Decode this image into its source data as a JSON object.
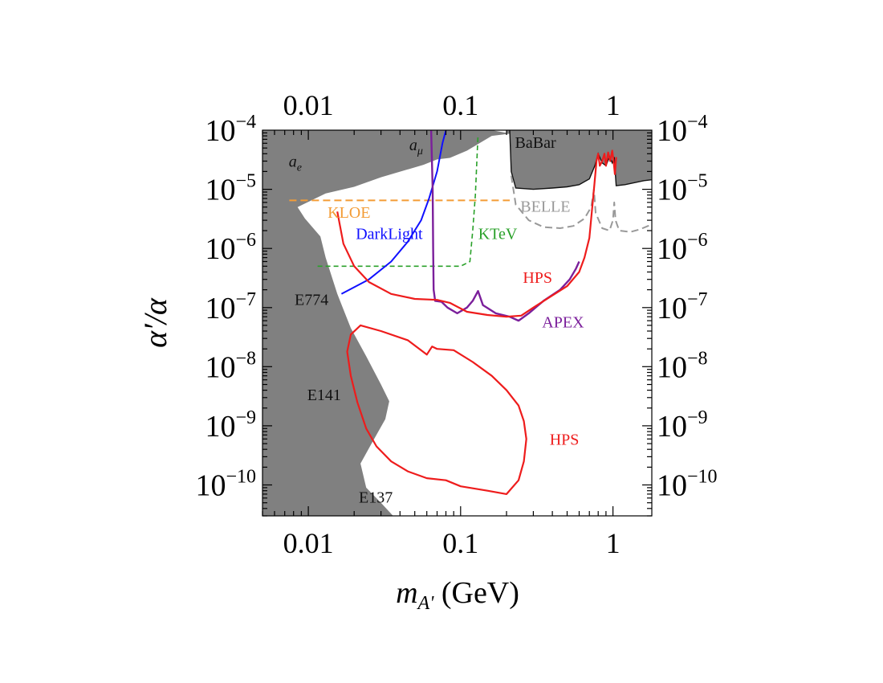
{
  "chart_data": {
    "type": "line",
    "xscale": "log",
    "yscale": "log",
    "xlim": [
      0.005,
      1.8
    ],
    "ylim": [
      3e-11,
      0.0001
    ],
    "xlabel_main": "m",
    "xlabel_sub": "A'",
    "xlabel_unit": " (GeV)",
    "ylabel": "α′/α",
    "x_ticks": [
      {
        "v": 0.01,
        "label": "0.01"
      },
      {
        "v": 0.1,
        "label": "0.1"
      },
      {
        "v": 1,
        "label": "1"
      }
    ],
    "y_ticks": [
      {
        "v": 0.0001,
        "base": "10",
        "exp": "−4"
      },
      {
        "v": 1e-05,
        "base": "10",
        "exp": "−5"
      },
      {
        "v": 1e-06,
        "base": "10",
        "exp": "−6"
      },
      {
        "v": 1e-07,
        "base": "10",
        "exp": "−7"
      },
      {
        "v": 1e-08,
        "base": "10",
        "exp": "−8"
      },
      {
        "v": 1e-09,
        "base": "10",
        "exp": "−9"
      },
      {
        "v": 1e-10,
        "base": "10",
        "exp": "−10"
      }
    ],
    "excluded_regions": [
      {
        "name": "ae-amu-E774-E141-E137",
        "color": "#808080",
        "points": [
          [
            0.005,
            3e-11
          ],
          [
            0.005,
            0.0001
          ],
          [
            0.07,
            0.0001
          ],
          [
            0.16,
            0.0001
          ],
          [
            0.2,
            9e-05
          ],
          [
            0.2,
            0.0001
          ],
          [
            0.33,
            0.0001
          ],
          [
            0.16,
            8e-05
          ],
          [
            0.11,
            4.5e-05
          ],
          [
            0.085,
            3.4e-05
          ],
          [
            0.07,
            3.2e-05
          ],
          [
            0.057,
            2.6e-05
          ],
          [
            0.043,
            2.1e-05
          ],
          [
            0.03,
            1.6e-05
          ],
          [
            0.02,
            1.1e-05
          ],
          [
            0.013,
            8.5e-06
          ],
          [
            0.0085,
            5e-06
          ],
          [
            0.0095,
            3.2e-06
          ],
          [
            0.012,
            1.6e-06
          ],
          [
            0.013,
            7e-07
          ],
          [
            0.0155,
            1.7e-07
          ],
          [
            0.019,
            4.5e-08
          ],
          [
            0.024,
            1.5e-08
          ],
          [
            0.03,
            5e-09
          ],
          [
            0.034,
            2.6e-09
          ],
          [
            0.032,
            1.3e-09
          ],
          [
            0.026,
            5e-10
          ],
          [
            0.022,
            2.3e-10
          ],
          [
            0.024,
            9e-11
          ],
          [
            0.03,
            5e-11
          ],
          [
            0.036,
            3e-11
          ]
        ]
      },
      {
        "name": "BaBar",
        "color": "#808080",
        "points": [
          [
            0.21,
            0.0001
          ],
          [
            1.8,
            0.0001
          ],
          [
            1.8,
            1.45e-05
          ],
          [
            1.6,
            1.4e-05
          ],
          [
            1.2,
            1.2e-05
          ],
          [
            1.05,
            1.15e-05
          ],
          [
            1.02,
            3.5e-05
          ],
          [
            0.99,
            2.8e-05
          ],
          [
            0.95,
            3.6e-05
          ],
          [
            0.9,
            2.5e-05
          ],
          [
            0.85,
            2.8e-05
          ],
          [
            0.8,
            4e-05
          ],
          [
            0.76,
            2.5e-05
          ],
          [
            0.7,
            1.5e-05
          ],
          [
            0.6,
            1.2e-05
          ],
          [
            0.5,
            1.1e-05
          ],
          [
            0.4,
            1.05e-05
          ],
          [
            0.3,
            1e-05
          ],
          [
            0.23,
            1.05e-05
          ],
          [
            0.215,
            2e-05
          ],
          [
            0.21,
            0.0001
          ]
        ]
      }
    ],
    "series": [
      {
        "name": "KLOE",
        "color": "#f39c36",
        "dash": "9,5",
        "width": 2,
        "points": [
          [
            0.0075,
            6.5e-06
          ],
          [
            0.21,
            6.5e-06
          ]
        ]
      },
      {
        "name": "BELLE",
        "color": "#999999",
        "dash": "9,5",
        "width": 2,
        "points": [
          [
            0.215,
            1.7e-05
          ],
          [
            0.23,
            5.5e-06
          ],
          [
            0.28,
            3e-06
          ],
          [
            0.35,
            2.3e-06
          ],
          [
            0.45,
            2.2e-06
          ],
          [
            0.55,
            2.4e-06
          ],
          [
            0.65,
            3.2e-06
          ],
          [
            0.72,
            5e-06
          ],
          [
            0.75,
            1e-05
          ],
          [
            0.77,
            4e-06
          ],
          [
            0.85,
            2.2e-06
          ],
          [
            0.95,
            2e-06
          ],
          [
            1.0,
            3e-06
          ],
          [
            1.02,
            6e-06
          ],
          [
            1.04,
            3e-06
          ],
          [
            1.1,
            2e-06
          ],
          [
            1.3,
            1.9e-06
          ],
          [
            1.5,
            2.1e-06
          ],
          [
            1.7,
            2.4e-06
          ],
          [
            1.8,
            2.5e-06
          ]
        ]
      },
      {
        "name": "KTeV",
        "color": "#2aa12a",
        "dash": "6,4",
        "width": 1.6,
        "points": [
          [
            0.0115,
            5e-07
          ],
          [
            0.1,
            5e-07
          ],
          [
            0.115,
            6e-07
          ],
          [
            0.12,
            2e-06
          ],
          [
            0.125,
            8e-06
          ],
          [
            0.13,
            8.5e-05
          ]
        ]
      },
      {
        "name": "DarkLight",
        "color": "#1010ff",
        "dash": "",
        "width": 2,
        "points": [
          [
            0.0165,
            1.7e-07
          ],
          [
            0.025,
            3e-07
          ],
          [
            0.035,
            6e-07
          ],
          [
            0.045,
            1.3e-06
          ],
          [
            0.055,
            3e-06
          ],
          [
            0.062,
            7e-06
          ],
          [
            0.07,
            2e-05
          ],
          [
            0.076,
            6e-05
          ],
          [
            0.08,
            0.0001
          ]
        ]
      },
      {
        "name": "APEX",
        "color": "#7b1f9b",
        "dash": "",
        "width": 2.4,
        "points": [
          [
            0.064,
            0.0001
          ],
          [
            0.0655,
            1e-05
          ],
          [
            0.066,
            1e-06
          ],
          [
            0.0665,
            2e-07
          ],
          [
            0.068,
            1.3e-07
          ],
          [
            0.075,
            1.25e-07
          ],
          [
            0.082,
            1e-07
          ],
          [
            0.095,
            8e-08
          ],
          [
            0.11,
            1e-07
          ],
          [
            0.12,
            1.3e-07
          ],
          [
            0.13,
            1.9e-07
          ],
          [
            0.14,
            1.1e-07
          ],
          [
            0.17,
            8e-08
          ],
          [
            0.21,
            7e-08
          ],
          [
            0.24,
            6e-08
          ],
          [
            0.28,
            8e-08
          ],
          [
            0.35,
            1.3e-07
          ],
          [
            0.45,
            2e-07
          ],
          [
            0.52,
            3e-07
          ],
          [
            0.57,
            4.5e-07
          ],
          [
            0.6,
            6e-07
          ]
        ]
      },
      {
        "name": "HPS-upper",
        "color": "#ee1c1c",
        "dash": "",
        "width": 2.2,
        "points": [
          [
            0.0155,
            4.2e-06
          ],
          [
            0.017,
            1.2e-06
          ],
          [
            0.02,
            5e-07
          ],
          [
            0.025,
            2.7e-07
          ],
          [
            0.035,
            1.7e-07
          ],
          [
            0.05,
            1.4e-07
          ],
          [
            0.07,
            1.35e-07
          ],
          [
            0.085,
            1.2e-07
          ],
          [
            0.11,
            8.5e-08
          ],
          [
            0.15,
            7.5e-08
          ],
          [
            0.2,
            7e-08
          ],
          [
            0.25,
            7.3e-08
          ],
          [
            0.3,
            1e-07
          ],
          [
            0.4,
            1.6e-07
          ],
          [
            0.5,
            2.3e-07
          ],
          [
            0.6,
            4e-07
          ],
          [
            0.65,
            7e-07
          ],
          [
            0.7,
            1.5e-06
          ],
          [
            0.75,
            1e-05
          ],
          [
            0.78,
            3e-05
          ],
          [
            0.8,
            4e-05
          ],
          [
            0.82,
            2.5e-05
          ],
          [
            0.85,
            3e-05
          ],
          [
            0.88,
            4e-05
          ],
          [
            0.9,
            2.5e-05
          ],
          [
            0.93,
            4.2e-05
          ],
          [
            0.96,
            3e-05
          ],
          [
            0.99,
            4.5e-05
          ],
          [
            1.01,
            3e-05
          ],
          [
            1.03,
            1.8e-05
          ],
          [
            1.05,
            3.5e-05
          ]
        ]
      },
      {
        "name": "HPS-lower",
        "color": "#ee1c1c",
        "dash": "",
        "width": 2.2,
        "closed": true,
        "points": [
          [
            0.022,
            5e-08
          ],
          [
            0.03,
            4e-08
          ],
          [
            0.045,
            2.8e-08
          ],
          [
            0.06,
            1.6e-08
          ],
          [
            0.065,
            2.2e-08
          ],
          [
            0.07,
            2e-08
          ],
          [
            0.09,
            1.9e-08
          ],
          [
            0.12,
            1.2e-08
          ],
          [
            0.16,
            7e-09
          ],
          [
            0.2,
            4e-09
          ],
          [
            0.24,
            2.2e-09
          ],
          [
            0.26,
            1.2e-09
          ],
          [
            0.27,
            6e-10
          ],
          [
            0.26,
            2.5e-10
          ],
          [
            0.24,
            1.2e-10
          ],
          [
            0.2,
            7e-11
          ],
          [
            0.15,
            8e-11
          ],
          [
            0.1,
            9.5e-11
          ],
          [
            0.08,
            1.2e-10
          ],
          [
            0.06,
            1.3e-10
          ],
          [
            0.045,
            1.7e-10
          ],
          [
            0.035,
            2.5e-10
          ],
          [
            0.028,
            4.5e-10
          ],
          [
            0.024,
            9e-10
          ],
          [
            0.021,
            2.5e-09
          ],
          [
            0.019,
            7e-09
          ],
          [
            0.018,
            1.8e-08
          ],
          [
            0.019,
            3.5e-08
          ],
          [
            0.022,
            5e-08
          ]
        ]
      }
    ],
    "labels": [
      {
        "text": "a",
        "sub": "e",
        "x": 0.0082,
        "y": 2.4e-05,
        "color": "#111111",
        "italic": true
      },
      {
        "text": "a",
        "sub": "μ",
        "x": 0.051,
        "y": 4.6e-05,
        "color": "#111111",
        "italic": true
      },
      {
        "text": "BaBar",
        "x": 0.31,
        "y": 5e-05,
        "color": "#111111"
      },
      {
        "text": "KLOE",
        "x": 0.0185,
        "y": 3.3e-06,
        "color": "#f39c36"
      },
      {
        "text": "BELLE",
        "x": 0.36,
        "y": 4.2e-06,
        "color": "#999999"
      },
      {
        "text": "DarkLight",
        "x": 0.034,
        "y": 1.45e-06,
        "color": "#1010ff"
      },
      {
        "text": "KTeV",
        "x": 0.175,
        "y": 1.45e-06,
        "color": "#2aa12a"
      },
      {
        "text": "HPS",
        "x": 0.32,
        "y": 2.6e-07,
        "color": "#ee1c1c"
      },
      {
        "text": "E774",
        "x": 0.0105,
        "y": 1.1e-07,
        "color": "#111111"
      },
      {
        "text": "APEX",
        "x": 0.47,
        "y": 4.6e-08,
        "color": "#7b1f9b"
      },
      {
        "text": "E141",
        "x": 0.0127,
        "y": 2.7e-09,
        "color": "#111111"
      },
      {
        "text": "HPS",
        "x": 0.48,
        "y": 4.8e-10,
        "color": "#ee1c1c"
      },
      {
        "text": "E137",
        "x": 0.0277,
        "y": 5e-11,
        "color": "#111111"
      }
    ]
  }
}
